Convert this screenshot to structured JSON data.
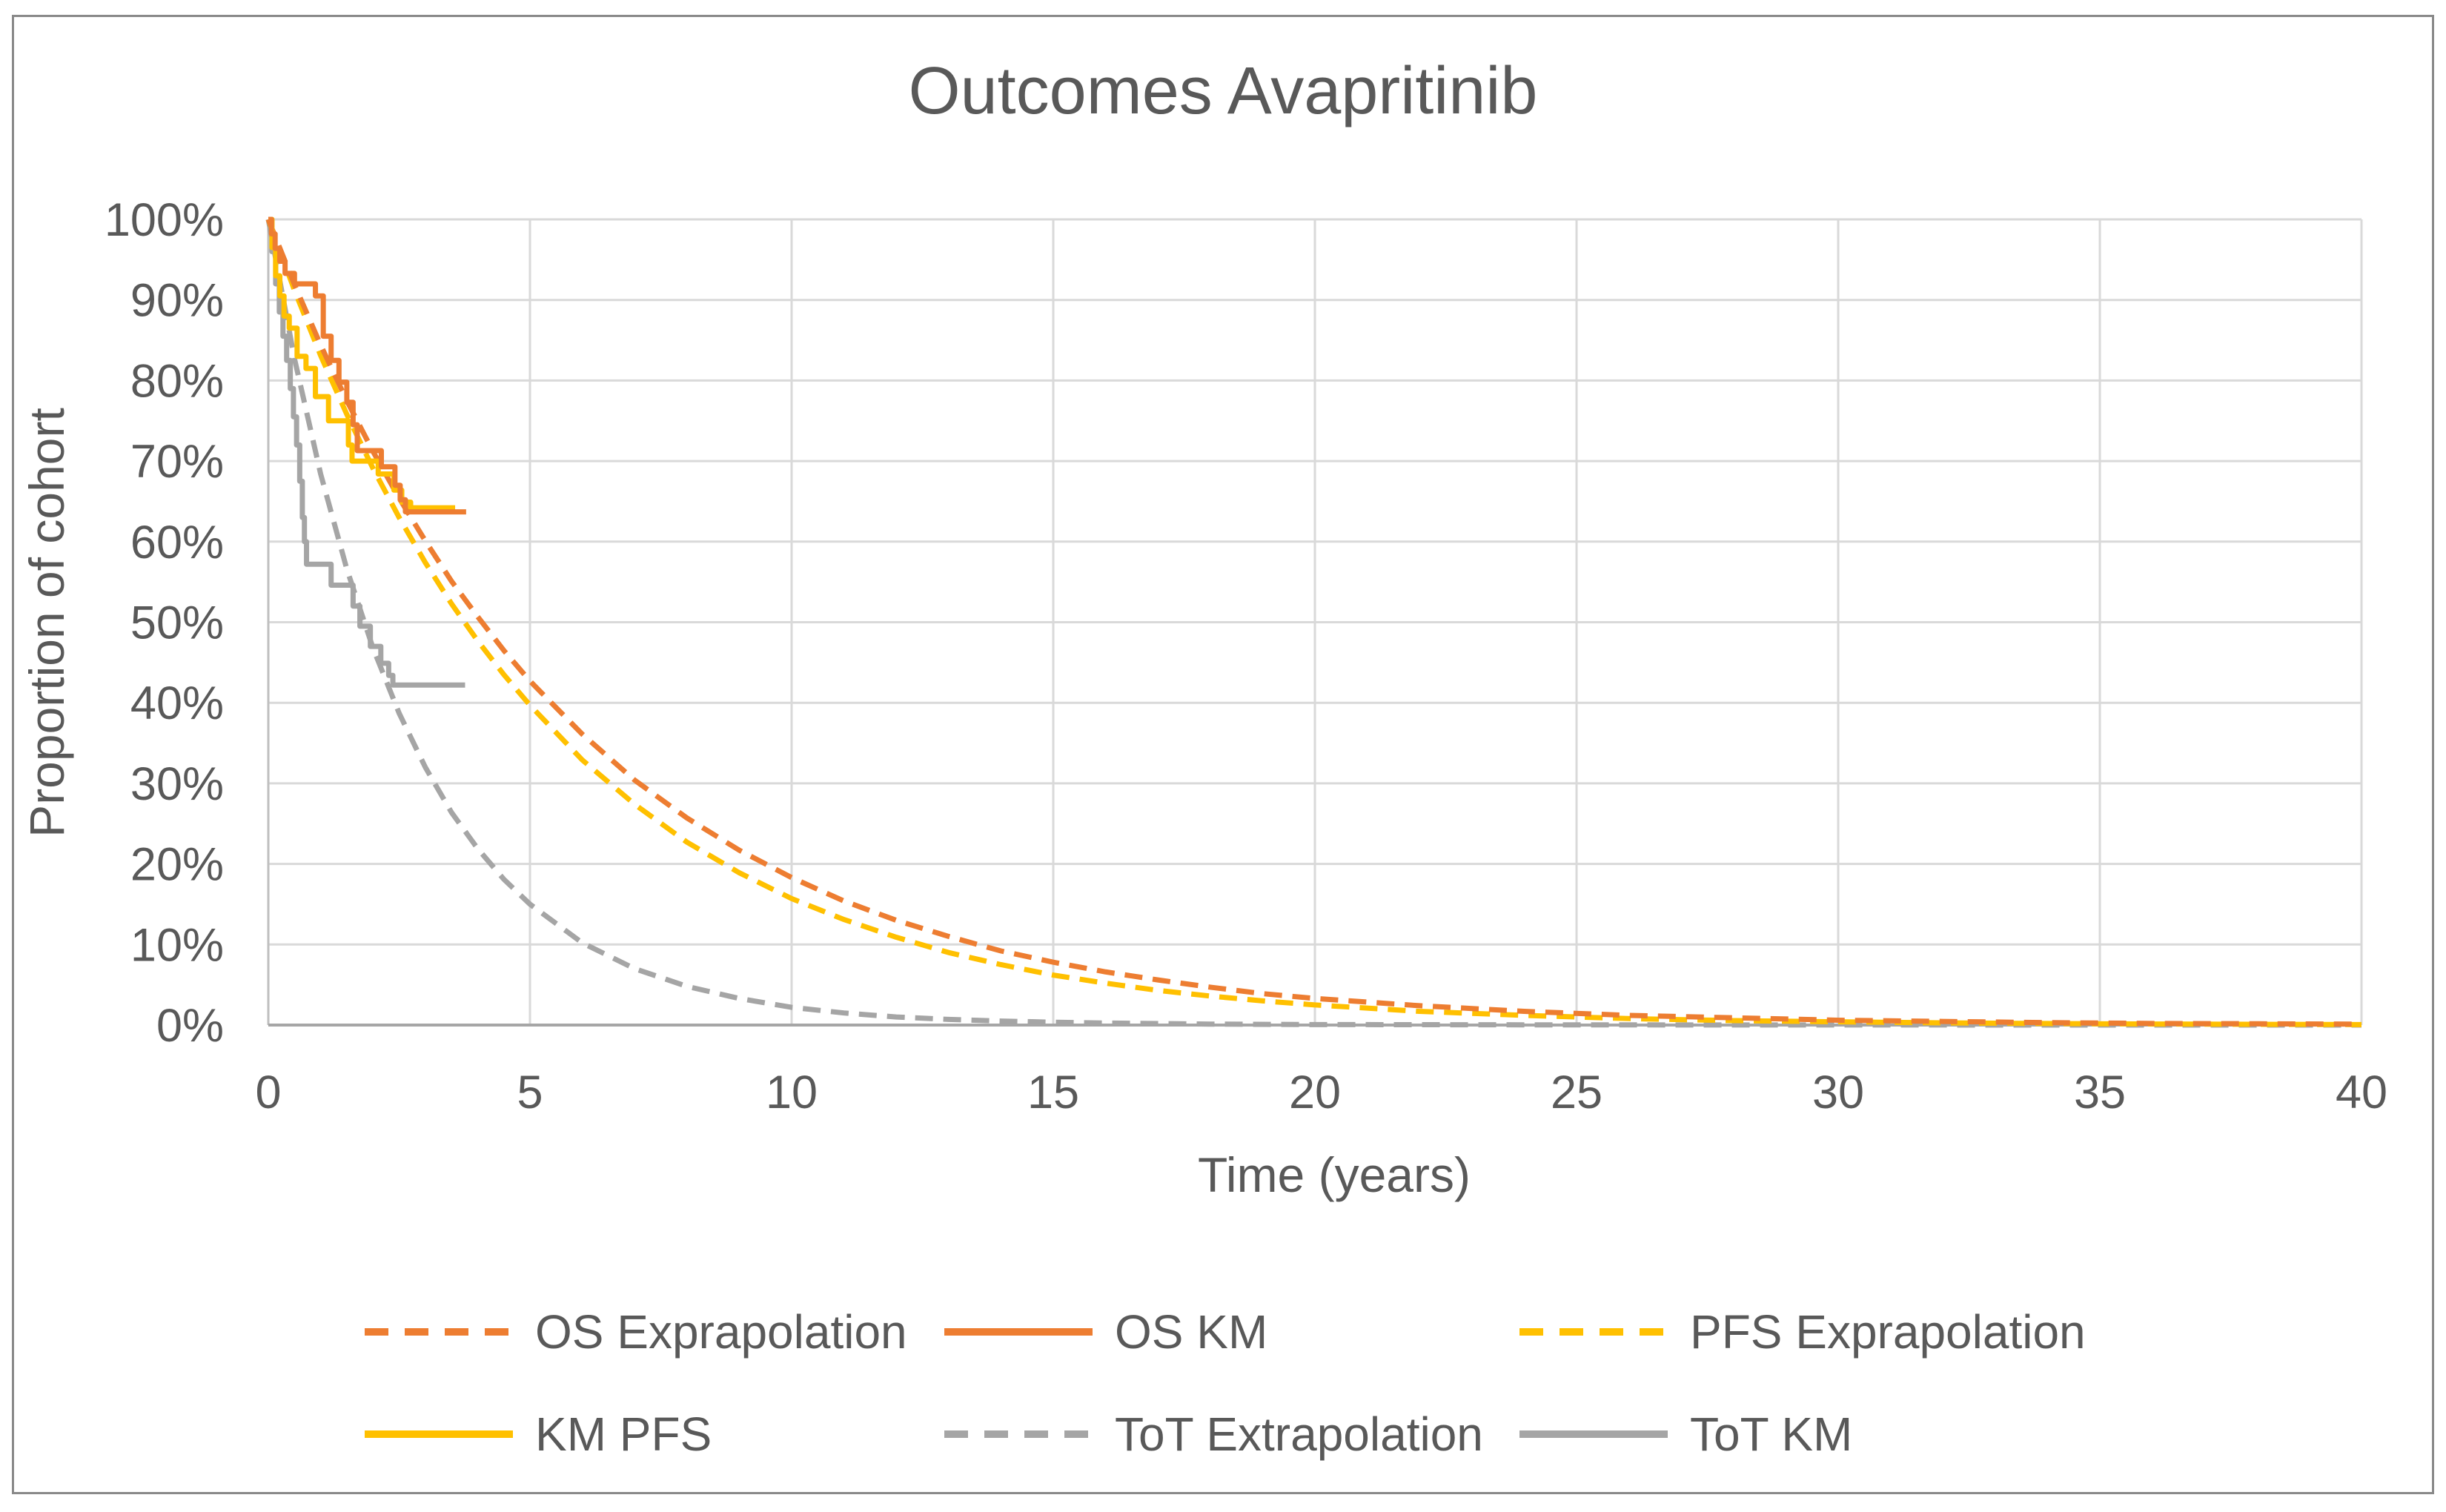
{
  "chart_data": {
    "type": "line",
    "title": "Outcomes Avapritinib",
    "xlabel": "Time (years)",
    "ylabel": "Proportion of cohort",
    "xlim": [
      0,
      40
    ],
    "ylim": [
      0,
      100
    ],
    "x_ticks": [
      0,
      5,
      10,
      15,
      20,
      25,
      30,
      35,
      40
    ],
    "y_ticks_percent": [
      0,
      10,
      20,
      30,
      40,
      50,
      60,
      70,
      80,
      90,
      100
    ],
    "y_tick_labels": [
      "0%",
      "10%",
      "20%",
      "30%",
      "40%",
      "50%",
      "60%",
      "70%",
      "80%",
      "90%",
      "100%"
    ],
    "grid": true,
    "legend_position": "bottom",
    "series": [
      {
        "id": "tot_extrapolation",
        "name": "ToT Extrapolation",
        "color": "#A5A5A5",
        "dash": true,
        "step": false,
        "points": [
          [
            0,
            100
          ],
          [
            0.5,
            82.7
          ],
          [
            1,
            68.4
          ],
          [
            1.5,
            56.6
          ],
          [
            2,
            46.8
          ],
          [
            2.5,
            38.7
          ],
          [
            3,
            32.0
          ],
          [
            3.5,
            26.4
          ],
          [
            4,
            21.9
          ],
          [
            4.5,
            18.1
          ],
          [
            5,
            15.0
          ],
          [
            6,
            10.2
          ],
          [
            7,
            7.0
          ],
          [
            8,
            4.8
          ],
          [
            9,
            3.3
          ],
          [
            10,
            2.2
          ],
          [
            11,
            1.5
          ],
          [
            12,
            1.0
          ],
          [
            13,
            0.7
          ],
          [
            14,
            0.5
          ],
          [
            15,
            0.35
          ],
          [
            16,
            0.25
          ],
          [
            18,
            0.12
          ],
          [
            20,
            0.06
          ],
          [
            25,
            0.02
          ],
          [
            30,
            0.01
          ],
          [
            35,
            0.0
          ],
          [
            40,
            0.0
          ]
        ]
      },
      {
        "id": "pfs_extrapolation",
        "name": "PFS Exprapolation",
        "color": "#FFC000",
        "dash": true,
        "step": false,
        "points": [
          [
            0,
            100
          ],
          [
            0.5,
            91.2
          ],
          [
            1,
            83.1
          ],
          [
            1.5,
            75.8
          ],
          [
            2,
            69.1
          ],
          [
            2.5,
            63.0
          ],
          [
            3,
            57.4
          ],
          [
            3.5,
            52.3
          ],
          [
            4,
            47.7
          ],
          [
            4.5,
            43.5
          ],
          [
            5,
            39.7
          ],
          [
            6,
            32.9
          ],
          [
            7,
            27.4
          ],
          [
            8,
            22.7
          ],
          [
            9,
            18.9
          ],
          [
            10,
            15.7
          ],
          [
            11,
            13.1
          ],
          [
            12,
            10.9
          ],
          [
            13,
            9.0
          ],
          [
            14,
            7.5
          ],
          [
            15,
            6.2
          ],
          [
            16,
            5.2
          ],
          [
            17,
            4.3
          ],
          [
            18,
            3.6
          ],
          [
            19,
            3.0
          ],
          [
            20,
            2.5
          ],
          [
            22,
            1.7
          ],
          [
            24,
            1.2
          ],
          [
            26,
            0.8
          ],
          [
            28,
            0.55
          ],
          [
            30,
            0.4
          ],
          [
            32,
            0.27
          ],
          [
            34,
            0.19
          ],
          [
            36,
            0.13
          ],
          [
            38,
            0.09
          ],
          [
            40,
            0.06
          ]
        ]
      },
      {
        "id": "os_extrapolation",
        "name": "OS Exprapolation",
        "color": "#ED7D31",
        "dash": true,
        "step": false,
        "points": [
          [
            0,
            100
          ],
          [
            0.5,
            91.9
          ],
          [
            1,
            84.4
          ],
          [
            1.5,
            77.5
          ],
          [
            2,
            71.2
          ],
          [
            2.5,
            65.4
          ],
          [
            3,
            60.1
          ],
          [
            3.5,
            55.1
          ],
          [
            4,
            50.7
          ],
          [
            4.5,
            46.5
          ],
          [
            5,
            42.7
          ],
          [
            6,
            36.1
          ],
          [
            7,
            30.4
          ],
          [
            8,
            25.7
          ],
          [
            9,
            21.7
          ],
          [
            10,
            18.3
          ],
          [
            11,
            15.4
          ],
          [
            12,
            13.0
          ],
          [
            13,
            11.0
          ],
          [
            14,
            9.2
          ],
          [
            15,
            7.8
          ],
          [
            16,
            6.6
          ],
          [
            17,
            5.6
          ],
          [
            18,
            4.7
          ],
          [
            19,
            3.9
          ],
          [
            20,
            3.3
          ],
          [
            22,
            2.4
          ],
          [
            24,
            1.7
          ],
          [
            26,
            1.2
          ],
          [
            28,
            0.9
          ],
          [
            30,
            0.6
          ],
          [
            32,
            0.45
          ],
          [
            34,
            0.3
          ],
          [
            36,
            0.2
          ],
          [
            38,
            0.16
          ],
          [
            40,
            0.11
          ]
        ]
      },
      {
        "id": "tot_km",
        "name": "ToT KM",
        "color": "#A5A5A5",
        "dash": false,
        "step": true,
        "end_t": 3.76,
        "points": [
          [
            0,
            100
          ],
          [
            0.07,
            96
          ],
          [
            0.14,
            92
          ],
          [
            0.21,
            88.5
          ],
          [
            0.28,
            85.5
          ],
          [
            0.35,
            82.5
          ],
          [
            0.42,
            79
          ],
          [
            0.48,
            75.5
          ],
          [
            0.54,
            72
          ],
          [
            0.6,
            67.5
          ],
          [
            0.65,
            63
          ],
          [
            0.69,
            60
          ],
          [
            0.73,
            57.2
          ],
          [
            1.2,
            54.6
          ],
          [
            1.62,
            52
          ],
          [
            1.75,
            49.5
          ],
          [
            1.95,
            47
          ],
          [
            2.15,
            44.9
          ],
          [
            2.3,
            43.4
          ],
          [
            2.38,
            42.2
          ]
        ]
      },
      {
        "id": "km_pfs",
        "name": "KM PFS",
        "color": "#FFC000",
        "dash": false,
        "step": true,
        "end_t": 3.57,
        "points": [
          [
            0,
            100
          ],
          [
            0.07,
            96.5
          ],
          [
            0.14,
            93
          ],
          [
            0.22,
            90.5
          ],
          [
            0.3,
            88
          ],
          [
            0.4,
            86.5
          ],
          [
            0.55,
            83
          ],
          [
            0.72,
            81.5
          ],
          [
            0.9,
            78
          ],
          [
            1.15,
            75
          ],
          [
            1.53,
            72
          ],
          [
            1.6,
            70
          ],
          [
            2.1,
            68.4
          ],
          [
            2.4,
            66.4
          ],
          [
            2.55,
            64.9
          ],
          [
            2.72,
            64.2
          ]
        ]
      },
      {
        "id": "os_km",
        "name": "OS KM",
        "color": "#ED7D31",
        "dash": false,
        "step": true,
        "end_t": 3.78,
        "points": [
          [
            0,
            100
          ],
          [
            0.06,
            98.2
          ],
          [
            0.13,
            96.4
          ],
          [
            0.22,
            94.8
          ],
          [
            0.32,
            93.3
          ],
          [
            0.5,
            92
          ],
          [
            0.9,
            90.5
          ],
          [
            1.05,
            85.5
          ],
          [
            1.2,
            82.5
          ],
          [
            1.35,
            79.8
          ],
          [
            1.5,
            77.3
          ],
          [
            1.62,
            74.5
          ],
          [
            1.7,
            71.3
          ],
          [
            2.16,
            69.3
          ],
          [
            2.42,
            67
          ],
          [
            2.52,
            65.2
          ],
          [
            2.62,
            63.7
          ]
        ]
      }
    ]
  },
  "legend": {
    "rows": [
      [
        {
          "label": "OS Exprapolation",
          "series": "os_extrapolation"
        },
        {
          "label": "OS KM",
          "series": "os_km"
        },
        {
          "label": "PFS Exprapolation",
          "series": "pfs_extrapolation"
        }
      ],
      [
        {
          "label": "KM PFS",
          "series": "km_pfs"
        },
        {
          "label": "ToT Extrapolation",
          "series": "tot_extrapolation"
        },
        {
          "label": "ToT KM",
          "series": "tot_km"
        }
      ]
    ]
  },
  "style": {
    "text_color": "#595959",
    "gridline_color": "#D9D9D9",
    "axis_line_color": "#BFBFBF",
    "x_axis_line_color": "#A6A6A6",
    "frame_border_color": "#898989",
    "background": "#FFFFFF"
  }
}
